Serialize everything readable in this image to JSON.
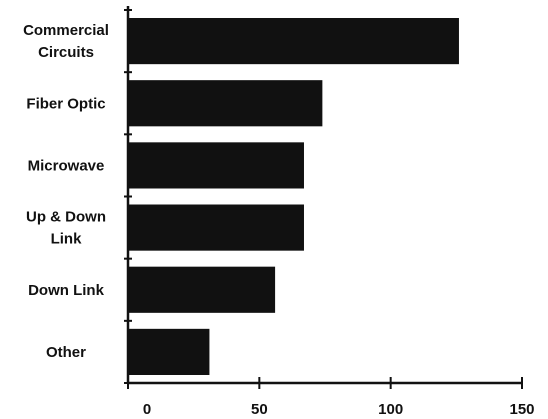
{
  "chart_data": {
    "type": "bar",
    "orientation": "horizontal",
    "categories": [
      [
        "Commercial",
        "Circuits"
      ],
      [
        "Fiber Optic"
      ],
      [
        "Microwave"
      ],
      [
        "Up & Down",
        "Link"
      ],
      [
        "Down Link"
      ],
      [
        "Other"
      ]
    ],
    "values": [
      126,
      74,
      67,
      67,
      56,
      31
    ],
    "xlim": [
      0,
      150
    ],
    "xticks": [
      "0",
      "50",
      "100",
      "150"
    ],
    "grid": false,
    "legend": "none",
    "bar_color": "#111111",
    "axis_color": "#111111"
  }
}
